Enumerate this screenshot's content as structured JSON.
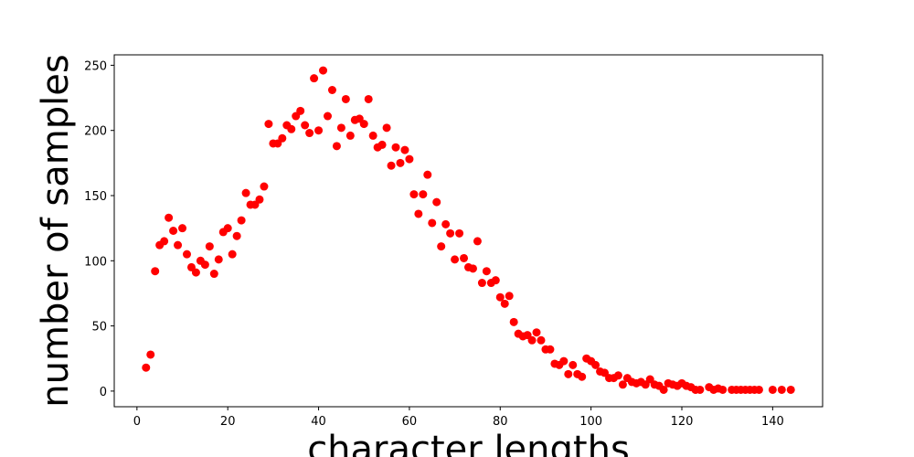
{
  "chart_data": {
    "type": "scatter",
    "xlabel": "character lengths",
    "ylabel": "number of samples",
    "xlim": [
      -5,
      151
    ],
    "ylim": [
      -12,
      258
    ],
    "xticks": [
      0,
      20,
      40,
      60,
      80,
      100,
      120,
      140
    ],
    "yticks": [
      0,
      50,
      100,
      150,
      200,
      250
    ],
    "marker_color": "#ff0000",
    "grid": false,
    "series": [
      {
        "x": [
          2,
          3,
          4,
          5,
          6,
          7,
          8,
          9,
          10,
          11,
          12,
          13,
          14,
          15,
          16,
          17,
          18,
          19,
          20,
          21,
          22,
          23,
          24,
          25,
          26,
          27,
          28,
          29,
          30,
          31,
          32,
          33,
          34,
          35,
          36,
          37,
          38,
          39,
          40,
          41,
          42,
          43,
          44,
          45,
          46,
          47,
          48,
          49,
          50,
          51,
          52,
          53,
          54,
          55,
          56,
          57,
          58,
          59,
          60,
          61,
          62,
          63,
          64,
          65,
          66,
          67,
          68,
          69,
          70,
          71,
          72,
          73,
          74,
          75,
          76,
          77,
          78,
          79,
          80,
          81,
          82,
          83,
          84,
          85,
          86,
          87,
          88,
          89,
          90,
          91,
          92,
          93,
          94,
          95,
          96,
          97,
          98,
          99,
          100,
          101,
          102,
          103,
          104,
          105,
          106,
          107,
          108,
          109,
          110,
          111,
          112,
          113,
          114,
          115,
          116,
          117,
          118,
          119,
          120,
          121,
          122,
          123,
          124,
          126,
          127,
          128,
          129,
          131,
          132,
          133,
          134,
          135,
          136,
          137,
          140,
          142,
          144
        ],
        "y": [
          18,
          28,
          92,
          112,
          115,
          133,
          123,
          112,
          125,
          105,
          95,
          91,
          100,
          97,
          111,
          90,
          101,
          122,
          125,
          105,
          119,
          131,
          152,
          143,
          143,
          147,
          157,
          205,
          190,
          190,
          194,
          204,
          201,
          211,
          215,
          204,
          198,
          240,
          200,
          246,
          211,
          231,
          188,
          202,
          224,
          196,
          208,
          209,
          205,
          224,
          196,
          187,
          189,
          202,
          173,
          187,
          175,
          185,
          178,
          151,
          136,
          151,
          166,
          129,
          145,
          111,
          128,
          121,
          101,
          121,
          102,
          95,
          94,
          115,
          83,
          92,
          83,
          85,
          72,
          67,
          73,
          53,
          44,
          42,
          43,
          39,
          45,
          39,
          32,
          32,
          21,
          20,
          23,
          13,
          20,
          13,
          11,
          25,
          23,
          20,
          15,
          14,
          10,
          10,
          12,
          5,
          10,
          7,
          6,
          7,
          5,
          9,
          5,
          4,
          1,
          6,
          5,
          4,
          6,
          4,
          3,
          1,
          1,
          3,
          1,
          2,
          1,
          1,
          1,
          1,
          1,
          1,
          1,
          1,
          1,
          1,
          1
        ]
      }
    ]
  }
}
